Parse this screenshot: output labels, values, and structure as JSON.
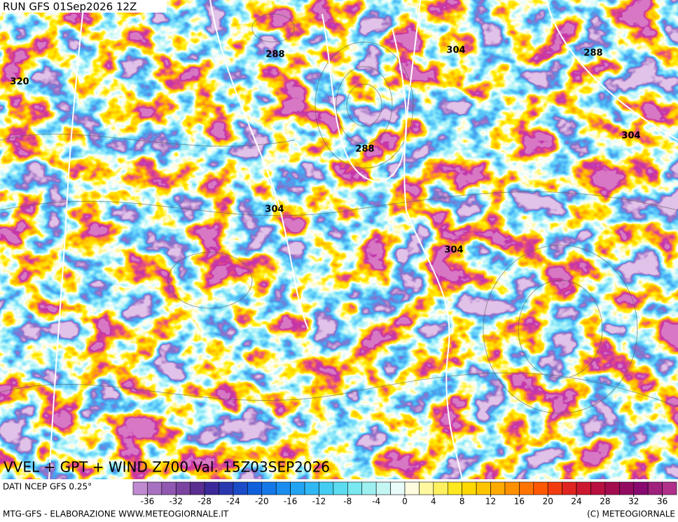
{
  "header": {
    "run": "RUN GFS 01Sep2026 12Z"
  },
  "map": {
    "contour_labels": [
      288,
      304,
      288,
      320,
      288,
      304,
      304,
      304
    ]
  },
  "footer": {
    "title": "VVEL + GPT + WIND Z700 Val. 15Z03SEP2026",
    "source": "DATI NCEP GFS 0.25°",
    "credit": "MTG-GFS - ELABORAZIONE WWW.METEOGIORNALE.IT",
    "copyright": "(C) METEOGIORNALE"
  },
  "colorbar": {
    "lim": [
      -38,
      38
    ],
    "ticks": [
      -36,
      -32,
      -28,
      -24,
      -20,
      -16,
      -12,
      -8,
      -4,
      0,
      4,
      8,
      12,
      16,
      20,
      24,
      28,
      32,
      36
    ],
    "colors": [
      "#c08ad0",
      "#a870c0",
      "#9058b0",
      "#7a44a0",
      "#5a2e90",
      "#3c2a9a",
      "#2a38b0",
      "#1a4cc8",
      "#1060dc",
      "#1478e8",
      "#1a8ef0",
      "#22a4f4",
      "#30b8f4",
      "#44ccf2",
      "#5cdcf0",
      "#7ae8f0",
      "#9ef0f0",
      "#c4f6f4",
      "#e8fcfa",
      "#fffce0",
      "#fff8a0",
      "#fff060",
      "#ffe820",
      "#ffd800",
      "#ffc400",
      "#ffaa00",
      "#ff9000",
      "#ff7400",
      "#ff5800",
      "#f23c10",
      "#e02420",
      "#cc1830",
      "#b81040",
      "#a40c50",
      "#940a60",
      "#880a70",
      "#a0207e",
      "#b0308c"
    ]
  }
}
